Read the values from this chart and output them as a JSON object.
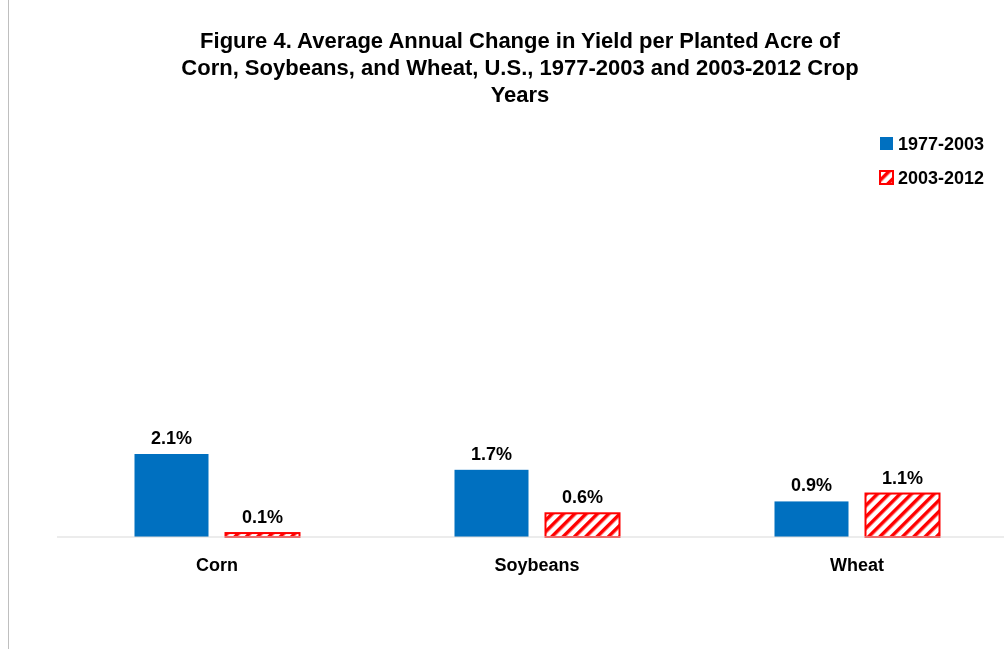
{
  "chart_data": {
    "type": "bar",
    "title": "Figure 4. Average Annual Change in Yield per Planted Acre of Corn, Soybeans, and Wheat, U.S., 1977-2003 and 2003-2012 Crop Years",
    "categories": [
      "Corn",
      "Soybeans",
      "Wheat"
    ],
    "series": [
      {
        "name": "1977-2003",
        "color": "#0070c0",
        "values": [
          2.1,
          1.7,
          0.9
        ],
        "value_labels": [
          "2.1%",
          "1.7%",
          "0.9%"
        ]
      },
      {
        "name": "2003-2012",
        "color": "#ff0000",
        "values": [
          0.1,
          0.6,
          1.1
        ],
        "value_labels": [
          "0.1%",
          "0.6%",
          "1.1%"
        ]
      }
    ],
    "legend": "top right"
  }
}
